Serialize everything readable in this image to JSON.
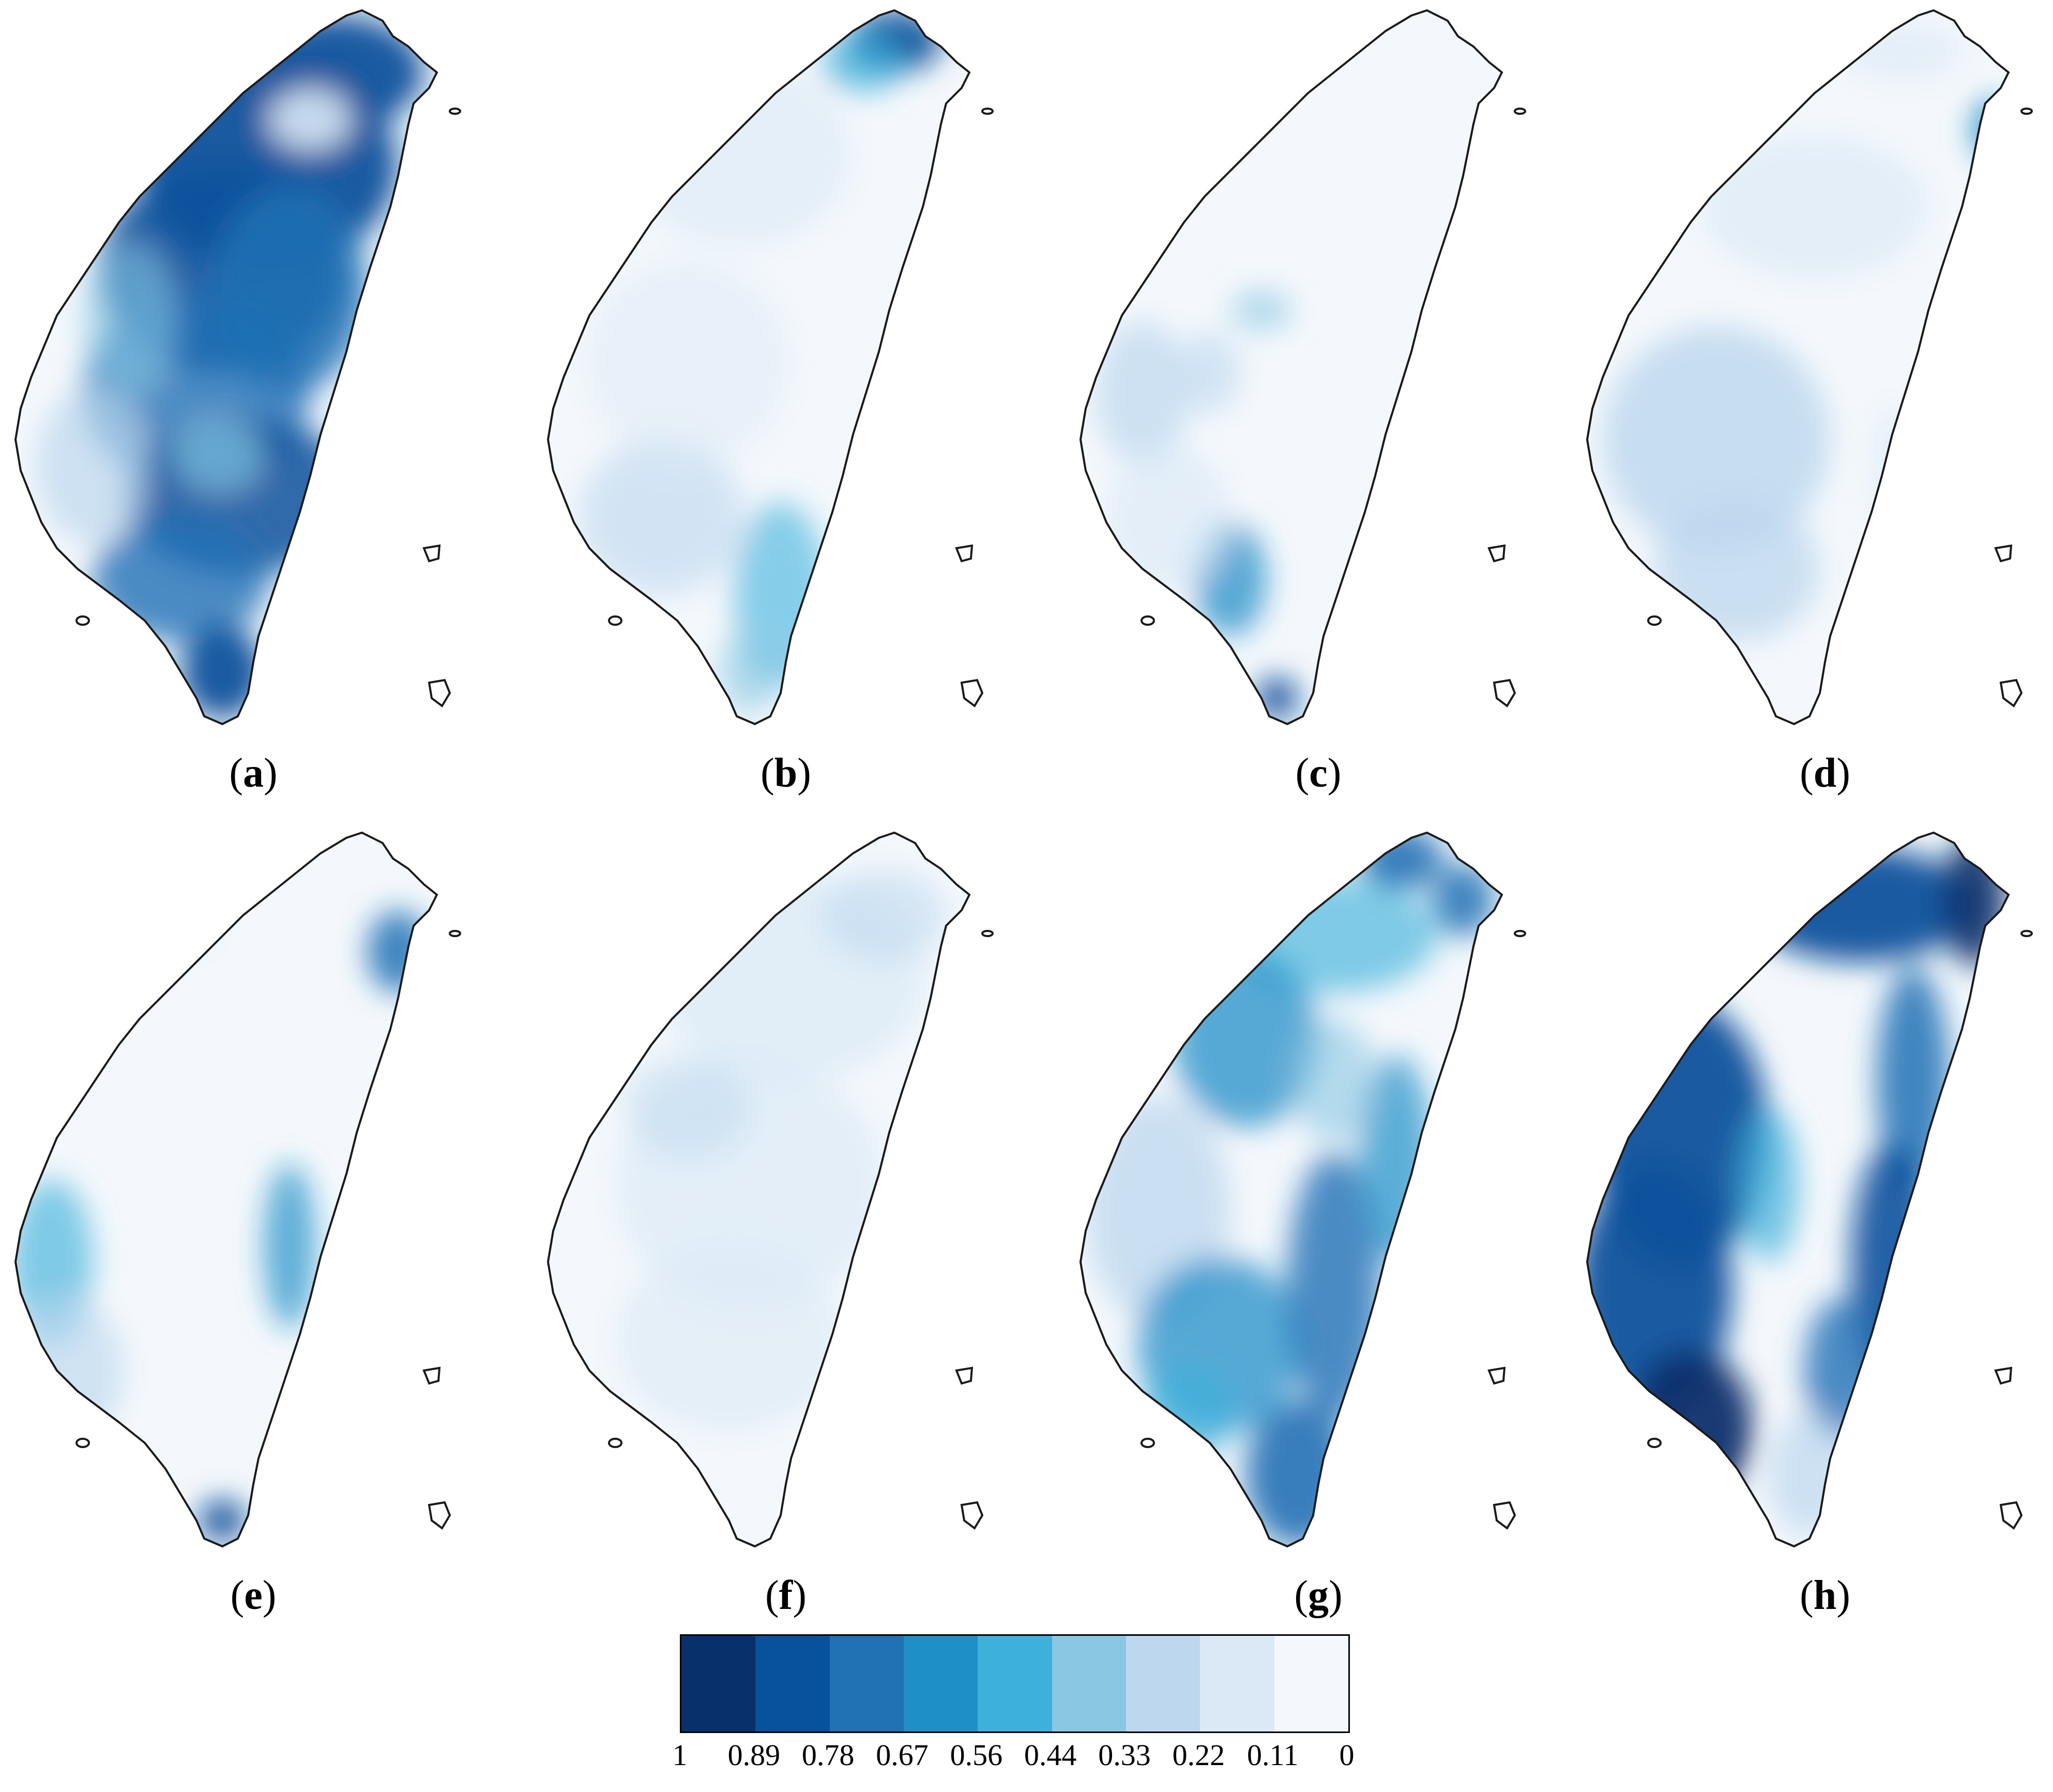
{
  "panels": [
    {
      "id": "a",
      "label": "a",
      "intensity": "very-high-north-central"
    },
    {
      "id": "b",
      "label": "b",
      "intensity": "low-with-northern-tip-and-southwest"
    },
    {
      "id": "c",
      "label": "c",
      "intensity": "very-low-with-southwest-patch"
    },
    {
      "id": "d",
      "label": "d",
      "intensity": "low-west-plain"
    },
    {
      "id": "e",
      "label": "e",
      "intensity": "low-west-coast-and-east-rift"
    },
    {
      "id": "f",
      "label": "f",
      "intensity": "very-low-uniform"
    },
    {
      "id": "g",
      "label": "g",
      "intensity": "moderate-mountain-flanks"
    },
    {
      "id": "h",
      "label": "h",
      "intensity": "high-west-plain-and-east-coast"
    }
  ],
  "colorbar": {
    "colors": [
      "#08306b",
      "#08519c",
      "#2171b5",
      "#1f8fc8",
      "#3eb0dc",
      "#89c7e3",
      "#bcd7ee",
      "#dbe9f6",
      "#f4f8fc"
    ],
    "ticks": [
      "1",
      "0.89",
      "0.78",
      "0.67",
      "0.56",
      "0.44",
      "0.33",
      "0.22",
      "0.11",
      "0"
    ]
  },
  "style": {
    "outline_color": "#1a1a1a",
    "land_base_color": "#f4f8fc"
  }
}
